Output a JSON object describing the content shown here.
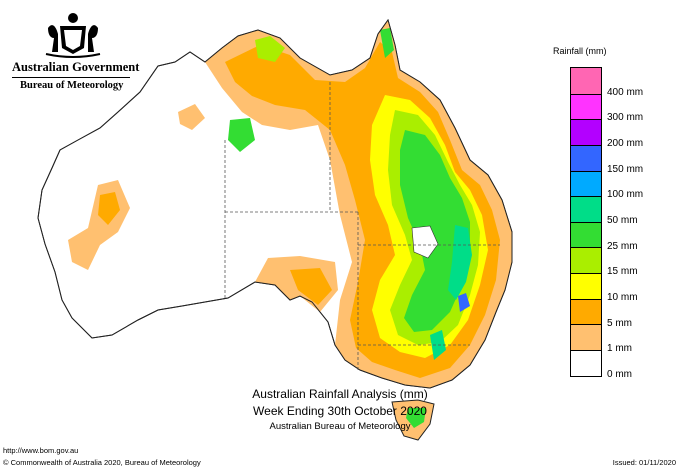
{
  "header": {
    "government": "Australian Government",
    "agency": "Bureau of Meteorology"
  },
  "legend": {
    "title": "Rainfall (mm)",
    "items": [
      {
        "label": "",
        "color": "#ff66b3"
      },
      {
        "label": "400 mm",
        "color": "#ff33ff"
      },
      {
        "label": "300 mm",
        "color": "#b300ff"
      },
      {
        "label": "200 mm",
        "color": "#3366ff"
      },
      {
        "label": "150 mm",
        "color": "#00aaff"
      },
      {
        "label": "100 mm",
        "color": "#00dd88"
      },
      {
        "label": "50 mm",
        "color": "#33dd33"
      },
      {
        "label": "25 mm",
        "color": "#aaee00"
      },
      {
        "label": "15 mm",
        "color": "#ffff00"
      },
      {
        "label": "10 mm",
        "color": "#ffaa00"
      },
      {
        "label": "5 mm",
        "color": "#ffc070"
      },
      {
        "label": "1 mm",
        "color": "#ffffff"
      },
      {
        "label": "0 mm",
        "color": ""
      }
    ]
  },
  "titles": {
    "line1": "Australian Rainfall Analysis (mm)",
    "line2": "Week Ending 30th October 2020",
    "line3": "Australian Bureau of Meteorology"
  },
  "footer": {
    "url": "http://www.bom.gov.au",
    "copyright": "© Commonwealth of Australia 2020, Bureau of Meteorology",
    "issued": "Issued: 01/11/2020"
  },
  "colors": {
    "dry": "#ffffff",
    "light": "#ffc070",
    "moderate": "#ffaa00",
    "yellow": "#ffff00",
    "lime": "#aaee00",
    "green": "#33dd33",
    "teal": "#00dd88",
    "blue": "#3366ff",
    "outline": "#333333"
  }
}
